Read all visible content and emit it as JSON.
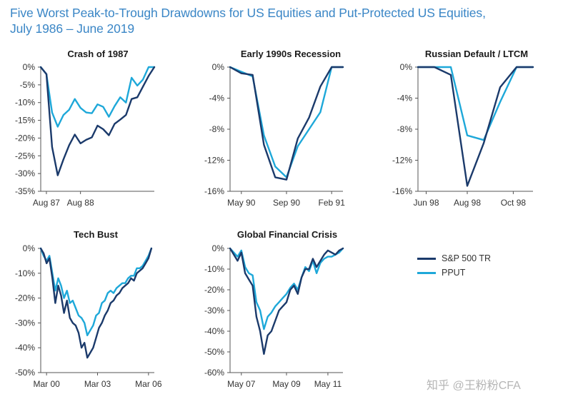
{
  "figure": {
    "title_line1": "Five Worst Peak-to-Trough Drawdowns for US Equities and Put-Protected US Equities,",
    "title_line2": "July 1986 – June 2019",
    "colors": {
      "sp500": "#1b3a6b",
      "pput": "#1ea8d9"
    },
    "legend": [
      "S&P 500 TR",
      "PPUT"
    ],
    "watermark": "知乎 @王粉粉CFA"
  },
  "chart_data": [
    {
      "type": "line",
      "title": "Crash of 1987",
      "xlabel": "",
      "ylabel": "",
      "ylim": [
        -35,
        0
      ],
      "yticks": [
        "0%",
        "-5%",
        "-10%",
        "-15%",
        "-20%",
        "-25%",
        "-30%",
        "-35%"
      ],
      "yvalues": [
        0,
        -5,
        -10,
        -15,
        -20,
        -25,
        -30,
        -35
      ],
      "xlim": [
        0,
        20
      ],
      "xticks": [
        {
          "label": "Aug 87",
          "x": 1
        },
        {
          "label": "Aug 88",
          "x": 7
        }
      ],
      "series": [
        {
          "name": "S&P 500 TR",
          "x": [
            0,
            1,
            2,
            3,
            4,
            5,
            6,
            7,
            8,
            9,
            10,
            11,
            12,
            13,
            14,
            15,
            16,
            17,
            18,
            19,
            20
          ],
          "values": [
            0,
            -2,
            -22.5,
            -30.5,
            -26,
            -22,
            -19,
            -21.5,
            -20.5,
            -19.8,
            -16.5,
            -17.5,
            -19.2,
            -16,
            -14.8,
            -13.5,
            -9,
            -8.5,
            -5.5,
            -2.5,
            0
          ]
        },
        {
          "name": "PPUT",
          "x": [
            0,
            1,
            2,
            3,
            4,
            5,
            6,
            7,
            8,
            9,
            10,
            11,
            12,
            13,
            14,
            15,
            16,
            17,
            18,
            19,
            20
          ],
          "values": [
            0,
            -2,
            -12.8,
            -16.8,
            -13.5,
            -12,
            -9,
            -11.5,
            -12.8,
            -13,
            -10.5,
            -11.2,
            -14,
            -11,
            -8.5,
            -10,
            -3,
            -5.2,
            -3.5,
            0,
            0
          ]
        }
      ]
    },
    {
      "type": "line",
      "title": "Early 1990s Recession",
      "xlabel": "",
      "ylabel": "",
      "ylim": [
        -16,
        0
      ],
      "yticks": [
        "0%",
        "-4%",
        "-8%",
        "-12%",
        "-16%"
      ],
      "yvalues": [
        0,
        -4,
        -8,
        -12,
        -16
      ],
      "xlim": [
        0,
        10
      ],
      "xticks": [
        {
          "label": "May 90",
          "x": 1
        },
        {
          "label": "Sep 90",
          "x": 5
        },
        {
          "label": "Feb 91",
          "x": 9
        }
      ],
      "series": [
        {
          "name": "S&P 500 TR",
          "x": [
            0,
            1,
            2,
            3,
            4,
            5,
            6,
            7,
            8,
            9,
            10
          ],
          "values": [
            0,
            -0.8,
            -1,
            -10,
            -14.2,
            -14.5,
            -9.2,
            -6.5,
            -2.5,
            0,
            0
          ]
        },
        {
          "name": "PPUT",
          "x": [
            0,
            1,
            2,
            3,
            4,
            5,
            6,
            7,
            8,
            9,
            10
          ],
          "values": [
            0,
            -0.6,
            -1.2,
            -8.8,
            -12.8,
            -14.2,
            -10.2,
            -8,
            -5.8,
            0,
            0
          ]
        }
      ]
    },
    {
      "type": "line",
      "title": "Russian Default / LTCM",
      "xlabel": "",
      "ylabel": "",
      "ylim": [
        -16,
        0
      ],
      "yticks": [
        "0%",
        "-4%",
        "-8%",
        "-12%",
        "-16%"
      ],
      "yvalues": [
        0,
        -4,
        -8,
        -12,
        -16
      ],
      "xlim": [
        0,
        7
      ],
      "xticks": [
        {
          "label": "Jun 98",
          "x": 0.5
        },
        {
          "label": "Aug 98",
          "x": 3
        },
        {
          "label": "Oct 98",
          "x": 5.8
        }
      ],
      "series": [
        {
          "name": "S&P 500 TR",
          "x": [
            0,
            1,
            2,
            3,
            4,
            5,
            6,
            7
          ],
          "values": [
            0,
            0,
            -1,
            -15.3,
            -9.8,
            -2.6,
            0,
            0
          ]
        },
        {
          "name": "PPUT",
          "x": [
            0,
            1,
            2,
            3,
            4,
            5,
            6,
            7
          ],
          "values": [
            0,
            0,
            0,
            -8.8,
            -9.4,
            -4.5,
            0,
            0
          ]
        }
      ]
    },
    {
      "type": "line",
      "title": "Tech Bust",
      "xlabel": "",
      "ylabel": "",
      "ylim": [
        -50,
        0
      ],
      "yticks": [
        "0%",
        "-10%",
        "-20%",
        "-30%",
        "-40%",
        "-50%"
      ],
      "yvalues": [
        0,
        -10,
        -20,
        -30,
        -40,
        -50
      ],
      "xlim": [
        0,
        78
      ],
      "xticks": [
        {
          "label": "Mar 00",
          "x": 4
        },
        {
          "label": "Mar 03",
          "x": 39
        },
        {
          "label": "Mar 06",
          "x": 74
        }
      ],
      "series": [
        {
          "name": "S&P 500 TR",
          "x": [
            0,
            2,
            4,
            6,
            8,
            10,
            12,
            14,
            16,
            18,
            20,
            22,
            24,
            26,
            28,
            30,
            32,
            34,
            36,
            38,
            40,
            42,
            44,
            46,
            48,
            50,
            52,
            54,
            56,
            58,
            60,
            62,
            64,
            66,
            68,
            70,
            72,
            74,
            76
          ],
          "values": [
            0,
            -2,
            -6,
            -4,
            -12,
            -22,
            -15,
            -19,
            -26,
            -21,
            -28,
            -30,
            -31,
            -34,
            -40,
            -38,
            -44,
            -42,
            -40,
            -36,
            -32,
            -30,
            -27,
            -25,
            -22,
            -21,
            -19,
            -18,
            -16,
            -15,
            -14,
            -12,
            -13,
            -10,
            -9,
            -8,
            -6,
            -4,
            0
          ]
        },
        {
          "name": "PPUT",
          "x": [
            0,
            2,
            4,
            6,
            8,
            10,
            12,
            14,
            16,
            18,
            20,
            22,
            24,
            26,
            28,
            30,
            32,
            34,
            36,
            38,
            40,
            42,
            44,
            46,
            48,
            50,
            52,
            54,
            56,
            58,
            60,
            62,
            64,
            66,
            68,
            70,
            72,
            74,
            76
          ],
          "values": [
            0,
            -3,
            -5,
            -3,
            -10,
            -17,
            -12,
            -15,
            -20,
            -17,
            -22,
            -21,
            -24,
            -27,
            -28,
            -30,
            -35,
            -33,
            -31,
            -27,
            -26,
            -22,
            -21,
            -18,
            -17,
            -18,
            -16,
            -15,
            -14,
            -14,
            -12,
            -11,
            -11,
            -8,
            -8,
            -7,
            -5,
            -3,
            0
          ]
        }
      ]
    },
    {
      "type": "line",
      "title": "Global Financial Crisis",
      "xlabel": "",
      "ylabel": "",
      "ylim": [
        -60,
        0
      ],
      "yticks": [
        "0%",
        "-10%",
        "-20%",
        "-30%",
        "-40%",
        "-50%",
        "-60%"
      ],
      "yvalues": [
        0,
        -10,
        -20,
        -30,
        -40,
        -50,
        -60
      ],
      "xlim": [
        0,
        60
      ],
      "xticks": [
        {
          "label": "May 07",
          "x": 6
        },
        {
          "label": "May 09",
          "x": 30
        },
        {
          "label": "May 11",
          "x": 52
        }
      ],
      "series": [
        {
          "name": "S&P 500 TR",
          "x": [
            0,
            2,
            4,
            6,
            8,
            10,
            12,
            14,
            16,
            18,
            20,
            22,
            24,
            26,
            28,
            30,
            32,
            34,
            36,
            38,
            40,
            42,
            44,
            46,
            48,
            50,
            52,
            54,
            56,
            58,
            60
          ],
          "values": [
            0,
            -3,
            -6,
            -2,
            -12,
            -15,
            -18,
            -33,
            -40,
            -51,
            -42,
            -40,
            -35,
            -30,
            -28,
            -26,
            -20,
            -18,
            -22,
            -14,
            -10,
            -10,
            -5,
            -9,
            -6,
            -3,
            -1,
            -2,
            -3,
            -1,
            0
          ]
        },
        {
          "name": "PPUT",
          "x": [
            0,
            2,
            4,
            6,
            8,
            10,
            12,
            14,
            16,
            18,
            20,
            22,
            24,
            26,
            28,
            30,
            32,
            34,
            36,
            38,
            40,
            42,
            44,
            46,
            48,
            50,
            52,
            54,
            56,
            58,
            60
          ],
          "values": [
            0,
            -2,
            -4,
            -1,
            -9,
            -12,
            -13,
            -26,
            -30,
            -39,
            -33,
            -31,
            -28,
            -26,
            -24,
            -22,
            -19,
            -17,
            -20,
            -14,
            -9,
            -11,
            -6,
            -12,
            -7,
            -5,
            -4,
            -4,
            -3,
            -2,
            0
          ]
        }
      ]
    }
  ]
}
